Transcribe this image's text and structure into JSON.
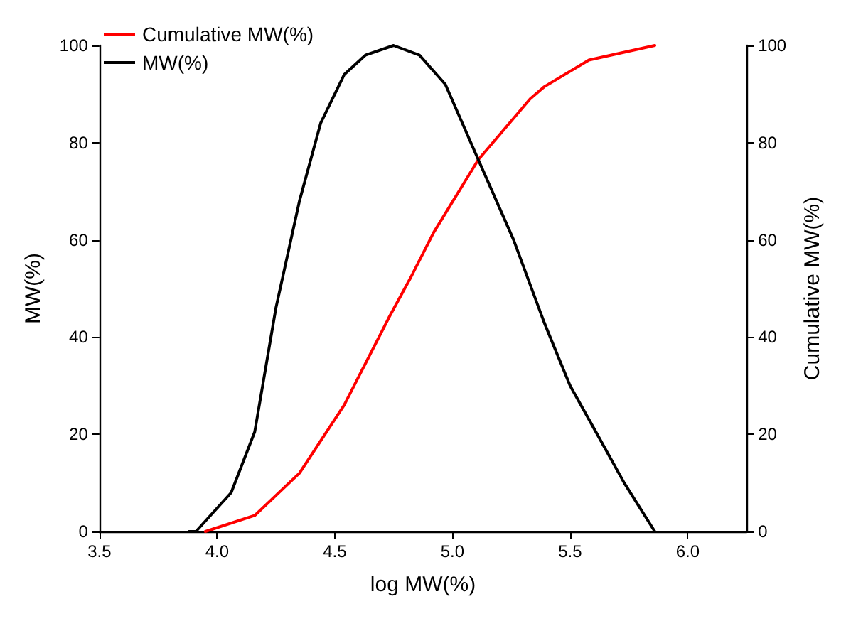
{
  "chart_data": {
    "type": "line",
    "xlabel": "log MW(%)",
    "ylabel": "MW(%)",
    "y2label": "Cumulative MW(%)",
    "xlim": [
      3.5,
      6.25
    ],
    "xticks": [
      {
        "value": 3.5,
        "label": "3.5"
      },
      {
        "value": 4,
        "label": "4.0"
      },
      {
        "value": 4.5,
        "label": "4.5"
      },
      {
        "value": 5,
        "label": "5.0"
      },
      {
        "value": 5.5,
        "label": "5.5"
      },
      {
        "value": 6,
        "label": "6.0"
      }
    ],
    "ylim": [
      0,
      100
    ],
    "yticks": [
      0,
      20,
      40,
      60,
      80,
      100
    ],
    "y2lim": [
      0,
      100
    ],
    "y2ticks": [
      0,
      20,
      40,
      60,
      80,
      100
    ],
    "series": [
      {
        "name": "Cumulative MW(%)",
        "color": "#ff0000",
        "axis": "y2",
        "x": [
          3.95,
          4.16,
          4.35,
          4.54,
          4.73,
          4.82,
          4.92,
          5.11,
          5.33,
          5.39,
          5.58,
          5.86
        ],
        "values": [
          0,
          3.3,
          12,
          26,
          44,
          52,
          61.5,
          76.5,
          89,
          91.5,
          97,
          100
        ]
      },
      {
        "name": "MW(%)",
        "color": "#000000",
        "x": [
          3.88,
          3.91,
          4.06,
          4.16,
          4.25,
          4.35,
          4.44,
          4.54,
          4.63,
          4.75,
          4.86,
          4.97,
          5.11,
          5.26,
          5.39,
          5.5,
          5.62,
          5.73,
          5.86
        ],
        "values": [
          0,
          0,
          8,
          20.5,
          46,
          68,
          84,
          94,
          98,
          100,
          98,
          92,
          76.5,
          60,
          43,
          30,
          19.6,
          10,
          0
        ]
      }
    ],
    "legend": "top left",
    "grid": false,
    "marker": "none",
    "line_style": "solid"
  }
}
